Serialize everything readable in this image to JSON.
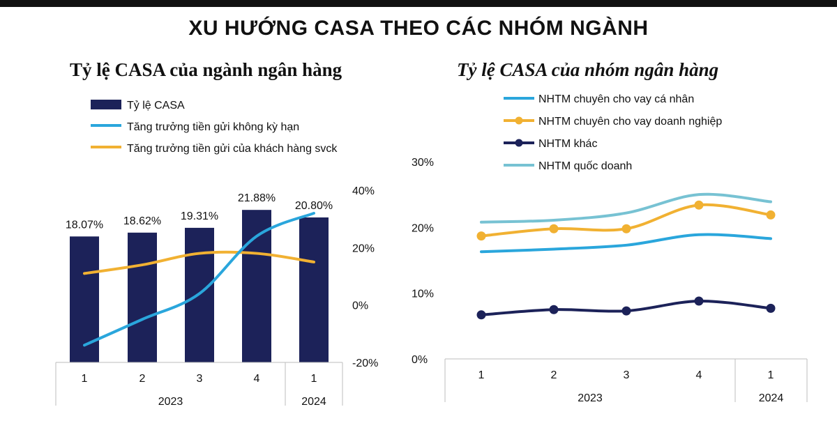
{
  "page": {
    "title": "XU HƯỚNG CASA THEO CÁC NHÓM NGÀNH"
  },
  "colors": {
    "navy": "#1c2259",
    "blue": "#2aa6dc",
    "gold": "#f1b132",
    "lightblue": "#77c2d3",
    "axis": "#bdbdbd"
  },
  "chart_data": [
    {
      "type": "bar",
      "title": "Tỷ lệ CASA của ngành ngân hàng",
      "categories": [
        "1",
        "2",
        "3",
        "4",
        "1"
      ],
      "category_groups": [
        {
          "label": "2023",
          "span": 4
        },
        {
          "label": "2024",
          "span": 1
        }
      ],
      "legend": [
        "Tỷ lệ CASA",
        "Tăng trưởng tiền gửi không kỳ hạn",
        "Tăng trưởng tiền gửi của khách hàng svck"
      ],
      "legend_position": "top-left",
      "series": [
        {
          "name": "Tỷ lệ CASA",
          "type": "bar",
          "values": [
            18.07,
            18.62,
            19.31,
            21.88,
            20.8
          ],
          "labels": [
            "18.07%",
            "18.62%",
            "19.31%",
            "21.88%",
            "20.80%"
          ],
          "color": "#1c2259"
        },
        {
          "name": "Tăng trưởng tiền gửi không kỳ hạn",
          "type": "line",
          "axis": "secondary",
          "values": [
            -14,
            -5,
            4,
            24,
            32
          ],
          "color": "#2aa6dc"
        },
        {
          "name": "Tăng trưởng tiền gửi của khách hàng svck",
          "type": "line",
          "axis": "secondary",
          "values": [
            11,
            14,
            18,
            18,
            15
          ],
          "color": "#f1b132"
        }
      ],
      "y_primary_range": [
        0,
        30
      ],
      "y2_range": [
        -20,
        40
      ],
      "y2_ticks": [
        "40%",
        "20%",
        "0%",
        "-20%"
      ],
      "grid": false
    },
    {
      "type": "line",
      "title": "Tỷ lệ CASA của nhóm ngân hàng",
      "categories": [
        "1",
        "2",
        "3",
        "4",
        "1"
      ],
      "category_groups": [
        {
          "label": "2023",
          "span": 4
        },
        {
          "label": "2024",
          "span": 1
        }
      ],
      "legend_position": "top-left",
      "ylim": [
        0,
        30
      ],
      "y_ticks": [
        "30%",
        "20%",
        "10%",
        "0%"
      ],
      "series": [
        {
          "name": "NHTM chuyên cho vay cá nhân",
          "values": [
            16.3,
            16.7,
            17.3,
            18.9,
            18.3
          ],
          "color": "#2aa6dc",
          "markers": false
        },
        {
          "name": "NHTM chuyên cho vay doanh nghiệp",
          "values": [
            18.7,
            19.8,
            19.8,
            23.4,
            21.9
          ],
          "color": "#f1b132",
          "markers": true
        },
        {
          "name": "NHTM khác",
          "values": [
            6.7,
            7.5,
            7.3,
            8.8,
            7.7
          ],
          "color": "#1c2259",
          "markers": true
        },
        {
          "name": "NHTM quốc doanh",
          "values": [
            20.8,
            21.1,
            22.2,
            25.0,
            23.9
          ],
          "color": "#77c2d3",
          "markers": false
        }
      ],
      "grid": false
    }
  ]
}
